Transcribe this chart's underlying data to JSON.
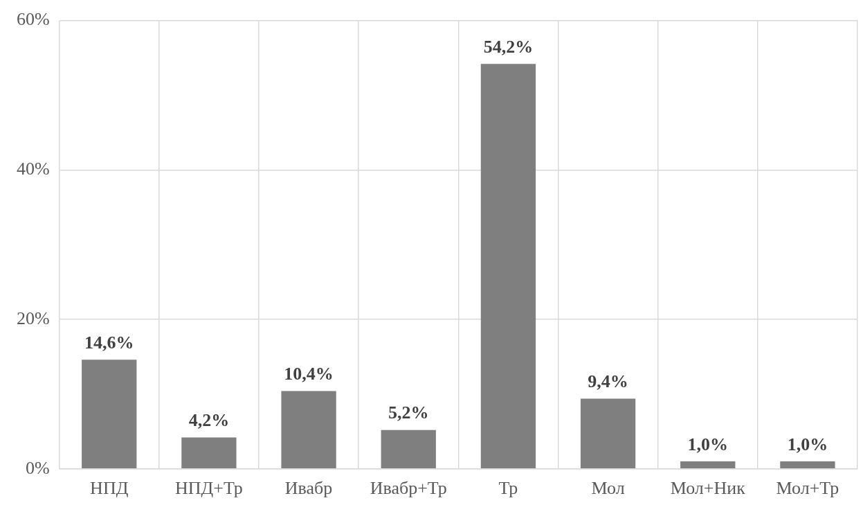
{
  "chart_data": {
    "type": "bar",
    "categories": [
      "НПД",
      "НПД+Тр",
      "Ивабр",
      "Ивабр+Тр",
      "Тр",
      "Мол",
      "Мол+Ник",
      "Мол+Тр"
    ],
    "values": [
      14.6,
      4.2,
      10.4,
      5.2,
      54.2,
      9.4,
      1.0,
      1.0
    ],
    "value_labels": [
      "14,6%",
      "4,2%",
      "10,4%",
      "5,2%",
      "54,2%",
      "9,4%",
      "1,0%",
      "1,0%"
    ],
    "color": "#7f7f7f",
    "ylim": [
      0,
      60
    ],
    "yticks": [
      {
        "value": 0,
        "label": "0%"
      },
      {
        "value": 20,
        "label": "20%"
      },
      {
        "value": 40,
        "label": "40%"
      },
      {
        "value": 60,
        "label": "60%"
      }
    ],
    "grid": true,
    "legend": false
  }
}
